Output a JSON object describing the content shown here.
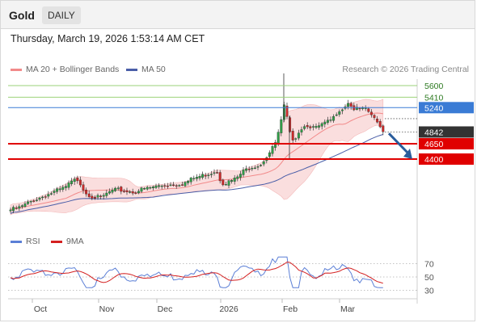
{
  "header": {
    "title": "Gold",
    "period": "DAILY"
  },
  "timestamp": "Thursday, March 19, 2026 1:53:14 AM CET",
  "legend": {
    "ma20": "MA 20 + Bollinger Bands",
    "ma50": "MA 50",
    "credit": "Research © 2026 Trading Central",
    "rsi": "RSI",
    "ma9": "9MA"
  },
  "colors": {
    "up": "#2f9e48",
    "down": "#cc2a2a",
    "bollinger": "#fadede",
    "ma20": "#f28a8a",
    "ma50": "#4a5ea8",
    "support": "#e00000",
    "resistance_green": "#9bd27a",
    "pivot": "#3a7bd5",
    "last": "#333333",
    "arrow": "#2b5d9c",
    "rsi": "#5b7fd6",
    "rsi_ma": "#d42020"
  },
  "chart_data": [
    {
      "type": "candlestick",
      "title": "",
      "x_ticks": [
        "Oct",
        "Nov",
        "Dec",
        "2026",
        "Feb",
        "Mar"
      ],
      "ylim": [
        3500,
        5800
      ],
      "levels": [
        {
          "label": "5600",
          "value": 5600,
          "kind": "resistance"
        },
        {
          "label": "5410",
          "value": 5410,
          "kind": "resistance"
        },
        {
          "label": "5240",
          "value": 5240,
          "kind": "pivot"
        },
        {
          "label": "4842",
          "value": 4842,
          "kind": "last"
        },
        {
          "label": "4650",
          "value": 4650,
          "kind": "support"
        },
        {
          "label": "4400",
          "value": 4400,
          "kind": "support"
        }
      ],
      "series": [
        {
          "name": "MA 20 + Bollinger Bands"
        },
        {
          "name": "MA 50"
        }
      ],
      "forecast": {
        "from": 4820,
        "to": 4400
      }
    },
    {
      "type": "line",
      "title": "",
      "x_ticks": [
        "Oct",
        "Nov",
        "Dec",
        "2026",
        "Feb",
        "Mar"
      ],
      "y_ticks": [
        "70",
        "50",
        "30"
      ],
      "ylim": [
        20,
        90
      ],
      "series": [
        {
          "name": "RSI"
        },
        {
          "name": "9MA"
        }
      ]
    }
  ]
}
